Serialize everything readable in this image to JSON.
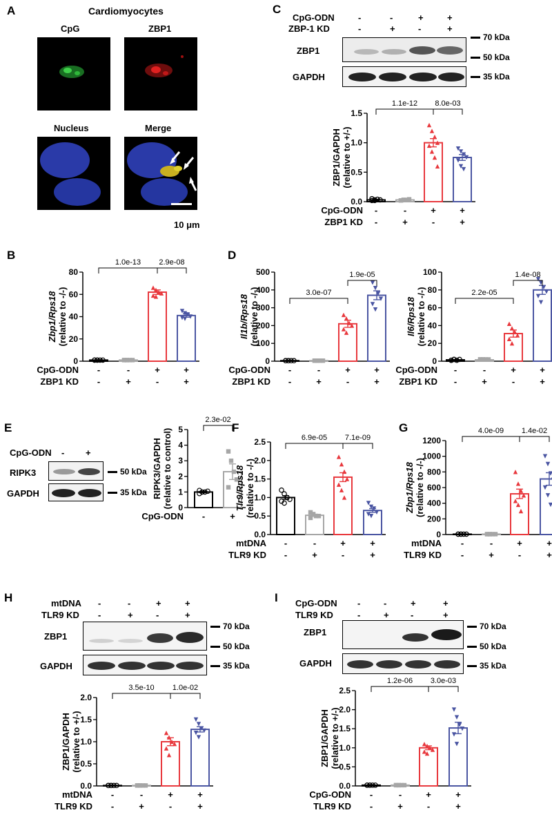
{
  "panel_letters": [
    "A",
    "B",
    "C",
    "D",
    "E",
    "F",
    "G",
    "H",
    "I"
  ],
  "panelA": {
    "title": "Cardiomyocytes",
    "labels": [
      "CpG",
      "ZBP1",
      "Nucleus",
      "Merge"
    ],
    "scale": "10 μm"
  },
  "panelC_blot": {
    "rows": [
      {
        "name": "CpG-ODN",
        "signs": [
          "-",
          "-",
          "+",
          "+"
        ]
      },
      {
        "name": "ZBP-1 KD",
        "signs": [
          "-",
          "+",
          "-",
          "+"
        ]
      }
    ],
    "bands": [
      "ZBP1",
      "GAPDH"
    ],
    "markers": [
      "70 kDa",
      "50 kDa",
      "35 kDa"
    ]
  },
  "panelE_blot": {
    "rows": [
      {
        "name": "CpG-ODN",
        "signs": [
          "-",
          "+"
        ]
      }
    ],
    "bands": [
      "RIPK3",
      "GAPDH"
    ],
    "markers": [
      "50 kDa",
      "35 kDa"
    ]
  },
  "panelH_blot": {
    "rows": [
      {
        "name": "mtDNA",
        "signs": [
          "-",
          "-",
          "+",
          "+"
        ]
      },
      {
        "name": "TLR9 KD",
        "signs": [
          "-",
          "+",
          "-",
          "+"
        ]
      }
    ],
    "bands": [
      "ZBP1",
      "GAPDH"
    ],
    "markers": [
      "70 kDa",
      "50 kDa",
      "35 kDa"
    ]
  },
  "panelI_blot": {
    "rows": [
      {
        "name": "CpG-ODN",
        "signs": [
          "-",
          "-",
          "+",
          "+"
        ]
      },
      {
        "name": "TLR9 KD",
        "signs": [
          "-",
          "+",
          "-",
          "+"
        ]
      }
    ],
    "bands": [
      "ZBP1",
      "GAPDH"
    ],
    "markers": [
      "70 kDa",
      "50 kDa",
      "35 kDa"
    ]
  },
  "colors": {
    "black": "#000000",
    "gray": "#a6a6a6",
    "red": "#e8383d",
    "blue": "#4a55a2"
  },
  "chart_data": [
    {
      "id": "C",
      "type": "bar",
      "ylabel": "ZBP1/GAPDH (relative to +/-)",
      "ylim": [
        0,
        1.5
      ],
      "yticks": [
        "0.0",
        "0.5",
        "1.0",
        "1.5"
      ],
      "rows": [
        {
          "name": "CpG-ODN",
          "signs": [
            "-",
            "-",
            "+",
            "+"
          ]
        },
        {
          "name": "ZBP1 KD",
          "signs": [
            "-",
            "+",
            "-",
            "+"
          ]
        }
      ],
      "values": [
        0.03,
        0.03,
        1.0,
        0.75
      ],
      "errors": [
        0.01,
        0.01,
        0.07,
        0.05
      ],
      "points": [
        [
          0.02,
          0.03,
          0.04,
          0.03,
          0.05,
          0.02
        ],
        [
          0.02,
          0.03,
          0.03,
          0.04,
          0.02,
          0.03
        ],
        [
          1.3,
          1.2,
          1.1,
          1.0,
          0.95,
          0.85,
          0.75,
          0.6
        ],
        [
          0.9,
          0.85,
          0.8,
          0.75,
          0.7,
          0.6,
          0.55
        ]
      ],
      "pvalues": [
        {
          "label": "1.1e-12",
          "from": 0,
          "to": 2
        },
        {
          "label": "8.0e-03",
          "from": 2,
          "to": 3
        }
      ]
    },
    {
      "id": "B",
      "type": "bar",
      "ylabel": "Zbp1/Rps18 (relative to -/-)",
      "ylim": [
        0,
        80
      ],
      "yticks": [
        "0",
        "20",
        "40",
        "60",
        "80"
      ],
      "rows": [
        {
          "name": "CpG-ODN",
          "signs": [
            "-",
            "-",
            "+",
            "+"
          ]
        },
        {
          "name": "ZBP1 KD",
          "signs": [
            "-",
            "+",
            "-",
            "+"
          ]
        }
      ],
      "values": [
        1,
        1,
        62,
        41
      ],
      "errors": [
        0.3,
        0.3,
        2,
        1.5
      ],
      "points": [
        [
          1,
          1,
          1,
          1,
          1,
          1
        ],
        [
          1,
          1,
          1,
          1,
          1,
          1
        ],
        [
          66,
          64,
          62,
          61,
          59,
          58
        ],
        [
          45,
          43,
          42,
          40,
          39,
          38
        ]
      ],
      "pvalues": [
        {
          "label": "1.0e-13",
          "from": 0,
          "to": 2
        },
        {
          "label": "2.9e-08",
          "from": 2,
          "to": 3
        }
      ]
    },
    {
      "id": "D1",
      "type": "bar",
      "ylabel": "Il1b/Rps18 (relative to -/-)",
      "ylim": [
        0,
        500
      ],
      "yticks": [
        "0",
        "100",
        "200",
        "300",
        "400",
        "500"
      ],
      "rows": [
        {
          "name": "CpG-ODN",
          "signs": [
            "-",
            "-",
            "+",
            "+"
          ]
        },
        {
          "name": "ZBP1 KD",
          "signs": [
            "-",
            "+",
            "-",
            "+"
          ]
        }
      ],
      "values": [
        3,
        3,
        210,
        370
      ],
      "errors": [
        1,
        1,
        20,
        25
      ],
      "points": [
        [
          3,
          3,
          3,
          3,
          3,
          3
        ],
        [
          3,
          3,
          3,
          3,
          3,
          3
        ],
        [
          260,
          240,
          215,
          200,
          180,
          160
        ],
        [
          440,
          410,
          380,
          350,
          320,
          290
        ]
      ],
      "pvalues": [
        {
          "label": "3.0e-07",
          "from": 0,
          "to": 2
        },
        {
          "label": "1.9e-05",
          "from": 2,
          "to": 3
        }
      ]
    },
    {
      "id": "D2",
      "type": "bar",
      "ylabel": "Il6/Rps18 (relative to -/-)",
      "ylim": [
        0,
        100
      ],
      "yticks": [
        "0",
        "20",
        "40",
        "60",
        "80",
        "100"
      ],
      "rows": [
        {
          "name": "CpG-ODN",
          "signs": [
            "-",
            "-",
            "+",
            "+"
          ]
        },
        {
          "name": "ZBP1 KD",
          "signs": [
            "-",
            "+",
            "-",
            "+"
          ]
        }
      ],
      "values": [
        1.5,
        1.5,
        31,
        80
      ],
      "errors": [
        0.3,
        0.3,
        4,
        5
      ],
      "points": [
        [
          1,
          2,
          1,
          2,
          1,
          2
        ],
        [
          2,
          2,
          2,
          2,
          2,
          2
        ],
        [
          42,
          37,
          33,
          29,
          25,
          20
        ],
        [
          92,
          88,
          83,
          78,
          73,
          66
        ]
      ],
      "pvalues": [
        {
          "label": "2.2e-05",
          "from": 0,
          "to": 2
        },
        {
          "label": "1.4e-08",
          "from": 2,
          "to": 3
        }
      ]
    },
    {
      "id": "E",
      "type": "bar",
      "ylabel": "RIPK3/GAPDH (relative to control)",
      "ylim": [
        0,
        5
      ],
      "yticks": [
        "0",
        "1",
        "2",
        "3",
        "4",
        "5"
      ],
      "rows": [
        {
          "name": "CpG-ODN",
          "signs": [
            "-",
            "+"
          ]
        }
      ],
      "values": [
        1.0,
        2.3
      ],
      "errors": [
        0.05,
        0.5
      ],
      "points": [
        [
          0.9,
          1.0,
          1.0,
          1.05,
          1.1
        ],
        [
          3.6,
          3.0,
          2.3,
          1.8,
          1.3
        ]
      ],
      "pvalues": [
        {
          "label": "2.3e-02",
          "from": 0,
          "to": 1
        }
      ]
    },
    {
      "id": "F",
      "type": "bar",
      "ylabel": "Tlr9/Rps18 (relative to -/-)",
      "ylim": [
        0,
        2.5
      ],
      "yticks": [
        "0.0",
        "0.5",
        "1.0",
        "1.5",
        "2.0",
        "2.5"
      ],
      "rows": [
        {
          "name": "mtDNA",
          "signs": [
            "-",
            "-",
            "+",
            "+"
          ]
        },
        {
          "name": "TLR9 KD",
          "signs": [
            "-",
            "+",
            "-",
            "+"
          ]
        }
      ],
      "values": [
        1.0,
        0.52,
        1.55,
        0.65
      ],
      "errors": [
        0.05,
        0.03,
        0.12,
        0.05
      ],
      "points": [
        [
          1.2,
          1.1,
          1.0,
          0.95,
          0.9,
          0.85
        ],
        [
          0.6,
          0.55,
          0.5,
          0.5,
          0.45,
          0.55
        ],
        [
          2.1,
          1.9,
          1.7,
          1.5,
          1.35,
          1.2,
          1.0
        ],
        [
          0.85,
          0.75,
          0.7,
          0.6,
          0.55,
          0.5
        ]
      ],
      "pvalues": [
        {
          "label": "6.9e-05",
          "from": 0,
          "to": 2
        },
        {
          "label": "7.1e-09",
          "from": 2,
          "to": 3
        }
      ]
    },
    {
      "id": "G",
      "type": "bar",
      "ylabel": "Zbp1/Rps18 (relative to -/-)",
      "ylim": [
        0,
        1200
      ],
      "yticks": [
        "0",
        "200",
        "400",
        "600",
        "800",
        "1000",
        "1200"
      ],
      "rows": [
        {
          "name": "mtDNA",
          "signs": [
            "-",
            "-",
            "+",
            "+"
          ]
        },
        {
          "name": "TLR9 KD",
          "signs": [
            "-",
            "+",
            "-",
            "+"
          ]
        }
      ],
      "values": [
        5,
        5,
        520,
        710
      ],
      "errors": [
        1,
        1,
        60,
        80
      ],
      "points": [
        [
          5,
          5,
          5,
          5,
          5,
          5
        ],
        [
          5,
          5,
          5,
          5,
          5,
          5
        ],
        [
          800,
          650,
          560,
          500,
          430,
          380,
          300
        ],
        [
          1000,
          900,
          780,
          700,
          600,
          500,
          380
        ]
      ],
      "pvalues": [
        {
          "label": "4.0e-09",
          "from": 0,
          "to": 2
        },
        {
          "label": "1.4e-02",
          "from": 2,
          "to": 3
        }
      ]
    },
    {
      "id": "H",
      "type": "bar",
      "ylabel": "ZBP1/GAPDH (relative to +/-)",
      "ylim": [
        0,
        2
      ],
      "yticks": [
        "0.0",
        "0.5",
        "1.0",
        "1.5",
        "2.0"
      ],
      "rows": [
        {
          "name": "mtDNA",
          "signs": [
            "-",
            "-",
            "+",
            "+"
          ]
        },
        {
          "name": "TLR9 KD",
          "signs": [
            "-",
            "+",
            "-",
            "+"
          ]
        }
      ],
      "values": [
        0.01,
        0.01,
        1.0,
        1.28
      ],
      "errors": [
        0.005,
        0.005,
        0.09,
        0.06
      ],
      "points": [
        [
          0.01,
          0.01,
          0.01,
          0.01,
          0.01,
          0.01
        ],
        [
          0.01,
          0.01,
          0.01,
          0.01,
          0.01,
          0.01
        ],
        [
          1.2,
          1.1,
          1.0,
          0.95,
          0.85,
          0.7
        ],
        [
          1.5,
          1.4,
          1.3,
          1.25,
          1.2,
          1.1
        ]
      ],
      "pvalues": [
        {
          "label": "3.5e-10",
          "from": 0,
          "to": 2
        },
        {
          "label": "1.0e-02",
          "from": 2,
          "to": 3
        }
      ]
    },
    {
      "id": "I",
      "type": "bar",
      "ylabel": "ZBP1/GAPDH (relative to +/-)",
      "ylim": [
        0,
        2.5
      ],
      "yticks": [
        "0.0",
        "0.5",
        "1.0",
        "1.5",
        "2.0",
        "2.5"
      ],
      "rows": [
        {
          "name": "CpG-ODN",
          "signs": [
            "-",
            "-",
            "+",
            "+"
          ]
        },
        {
          "name": "TLR9 KD",
          "signs": [
            "-",
            "+",
            "-",
            "+"
          ]
        }
      ],
      "values": [
        0.02,
        0.02,
        1.0,
        1.52
      ],
      "errors": [
        0.01,
        0.01,
        0.05,
        0.15
      ],
      "points": [
        [
          0.02,
          0.02,
          0.02,
          0.02,
          0.02,
          0.02
        ],
        [
          0.02,
          0.02,
          0.02,
          0.02,
          0.02,
          0.02
        ],
        [
          1.1,
          1.05,
          1.0,
          0.95,
          0.9,
          0.85
        ],
        [
          2.0,
          1.8,
          1.6,
          1.5,
          1.35,
          1.1
        ]
      ],
      "pvalues": [
        {
          "label": "1.2e-06",
          "from": 0,
          "to": 2
        },
        {
          "label": "3.0e-03",
          "from": 2,
          "to": 3
        }
      ]
    }
  ]
}
